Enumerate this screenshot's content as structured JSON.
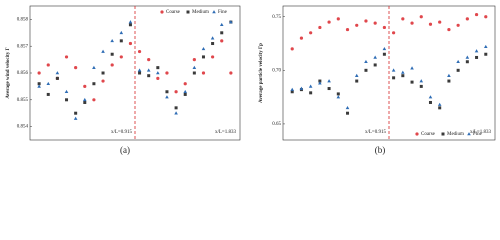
{
  "chart_data": [
    {
      "type": "scatter",
      "panel": "(a)",
      "ylabel": "Average wind velocity Γ",
      "annotations": [
        "x/L=0.915",
        "x/L=1.833"
      ],
      "x": [
        1,
        2,
        3,
        4,
        5,
        6,
        7,
        8,
        9,
        10,
        11,
        12,
        13,
        14,
        15,
        16,
        17,
        18,
        19,
        20,
        21,
        22
      ],
      "xlim": [
        0,
        23
      ],
      "ylim": [
        0.8535,
        0.8585
      ],
      "yticks": [
        0.854,
        0.855,
        0.856,
        0.857,
        0.858
      ],
      "legend": "top-right",
      "series": [
        {
          "name": "Coarse",
          "color": "#e0474c",
          "marker": "circle",
          "values": [
            0.856,
            0.8563,
            0.8558,
            0.8566,
            0.8562,
            0.8555,
            0.855,
            0.8557,
            0.8563,
            0.8566,
            0.8571,
            0.8568,
            0.8565,
            0.8558,
            0.856,
            0.8553,
            0.8556,
            0.8565,
            0.856,
            0.8566,
            0.8572,
            0.856
          ]
        },
        {
          "name": "Medium",
          "color": "#3a3a3a",
          "marker": "square",
          "values": [
            0.8556,
            0.8552,
            0.8558,
            0.855,
            0.8545,
            0.8549,
            0.8556,
            0.856,
            0.8567,
            0.8572,
            0.8578,
            0.856,
            0.8559,
            0.8562,
            0.8553,
            0.8547,
            0.8552,
            0.856,
            0.8566,
            0.8571,
            0.8575,
            0.8579
          ]
        },
        {
          "name": "Fine",
          "color": "#2f6db5",
          "marker": "triangle",
          "values": [
            0.8555,
            0.8556,
            0.856,
            0.8553,
            0.8543,
            0.855,
            0.8562,
            0.8568,
            0.8572,
            0.8575,
            0.8579,
            0.8561,
            0.8561,
            0.856,
            0.8551,
            0.8545,
            0.8553,
            0.8562,
            0.8569,
            0.8573,
            0.8578,
            0.8579
          ]
        }
      ]
    },
    {
      "type": "scatter",
      "panel": "(b)",
      "ylabel": "Average particle velocity Γp",
      "annotations": [
        "x/L=0.915",
        "x/L=1.833"
      ],
      "x": [
        1,
        2,
        3,
        4,
        5,
        6,
        7,
        8,
        9,
        10,
        11,
        12,
        13,
        14,
        15,
        16,
        17,
        18,
        19,
        20,
        21,
        22
      ],
      "xlim": [
        0,
        23
      ],
      "ylim": [
        0.635,
        0.76
      ],
      "yticks": [
        0.65,
        {
          "value": 0.7,
          "label": "0.70"
        },
        0.75
      ],
      "legend": "bottom-right",
      "series": [
        {
          "name": "Coarse",
          "color": "#e0474c",
          "marker": "circle",
          "values": [
            0.72,
            0.73,
            0.735,
            0.74,
            0.745,
            0.748,
            0.738,
            0.742,
            0.746,
            0.744,
            0.74,
            0.735,
            0.748,
            0.744,
            0.75,
            0.743,
            0.745,
            0.738,
            0.742,
            0.748,
            0.752,
            0.75
          ]
        },
        {
          "name": "Medium",
          "color": "#3a3a3a",
          "marker": "square",
          "values": [
            0.68,
            0.682,
            0.679,
            0.69,
            0.683,
            0.678,
            0.66,
            0.69,
            0.7,
            0.705,
            0.715,
            0.693,
            0.695,
            0.689,
            0.685,
            0.67,
            0.665,
            0.69,
            0.7,
            0.708,
            0.712,
            0.715
          ]
        },
        {
          "name": "Fine",
          "color": "#2f6db5",
          "marker": "triangle",
          "values": [
            0.682,
            0.683,
            0.685,
            0.688,
            0.69,
            0.675,
            0.665,
            0.695,
            0.708,
            0.712,
            0.72,
            0.7,
            0.698,
            0.702,
            0.69,
            0.675,
            0.668,
            0.695,
            0.708,
            0.712,
            0.718,
            0.722
          ]
        }
      ]
    }
  ]
}
